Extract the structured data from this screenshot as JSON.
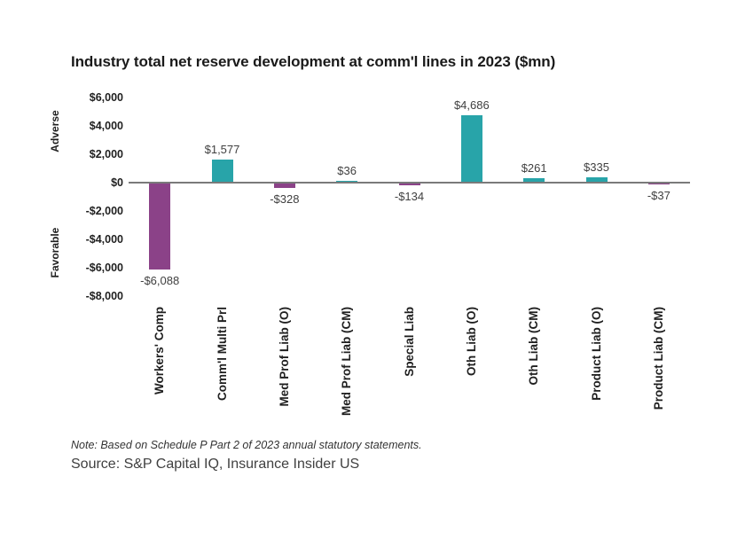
{
  "page": {
    "background": "#ffffff"
  },
  "chart_data": {
    "type": "bar",
    "title": "Industry total net reserve development at comm'l lines in 2023 ($mn)",
    "categories": [
      "Workers' Comp",
      "Comm'l Multi Prl",
      "Med Prof Liab (O)",
      "Med Prof Liab (CM)",
      "Special Liab",
      "Oth Liab (O)",
      "Oth Liab (CM)",
      "Product Liab (O)",
      "Product Liab (CM)"
    ],
    "values": [
      -6088,
      1577,
      -328,
      36,
      -134,
      4686,
      261,
      335,
      -37
    ],
    "value_labels": [
      "-$6,088",
      "$1,577",
      "-$328",
      "$36",
      "-$134",
      "$4,686",
      "$261",
      "$335",
      "-$37"
    ],
    "y_ticks": {
      "labels": [
        "$6,000",
        "$4,000",
        "$2,000",
        "$0",
        "-$2,000",
        "-$4,000",
        "-$6,000",
        "-$8,000"
      ],
      "values": [
        6000,
        4000,
        2000,
        0,
        -2000,
        -4000,
        -6000,
        -8000
      ]
    },
    "ylim": [
      -8000,
      6000
    ],
    "xlabel": "",
    "ylabel": "",
    "ylabel_top": "Adverse",
    "ylabel_bottom": "Favorable",
    "bar_color_positive": "#28A4A9",
    "bar_color_negative": "#8B4288",
    "axis_line_color": "#7A7A7A",
    "grid": "off",
    "legend": "none"
  },
  "footer": {
    "note": "Note: Based on Schedule P Part 2 of 2023 annual statutory statements.",
    "source": "Source: S&P Capital IQ, Insurance Insider US"
  }
}
